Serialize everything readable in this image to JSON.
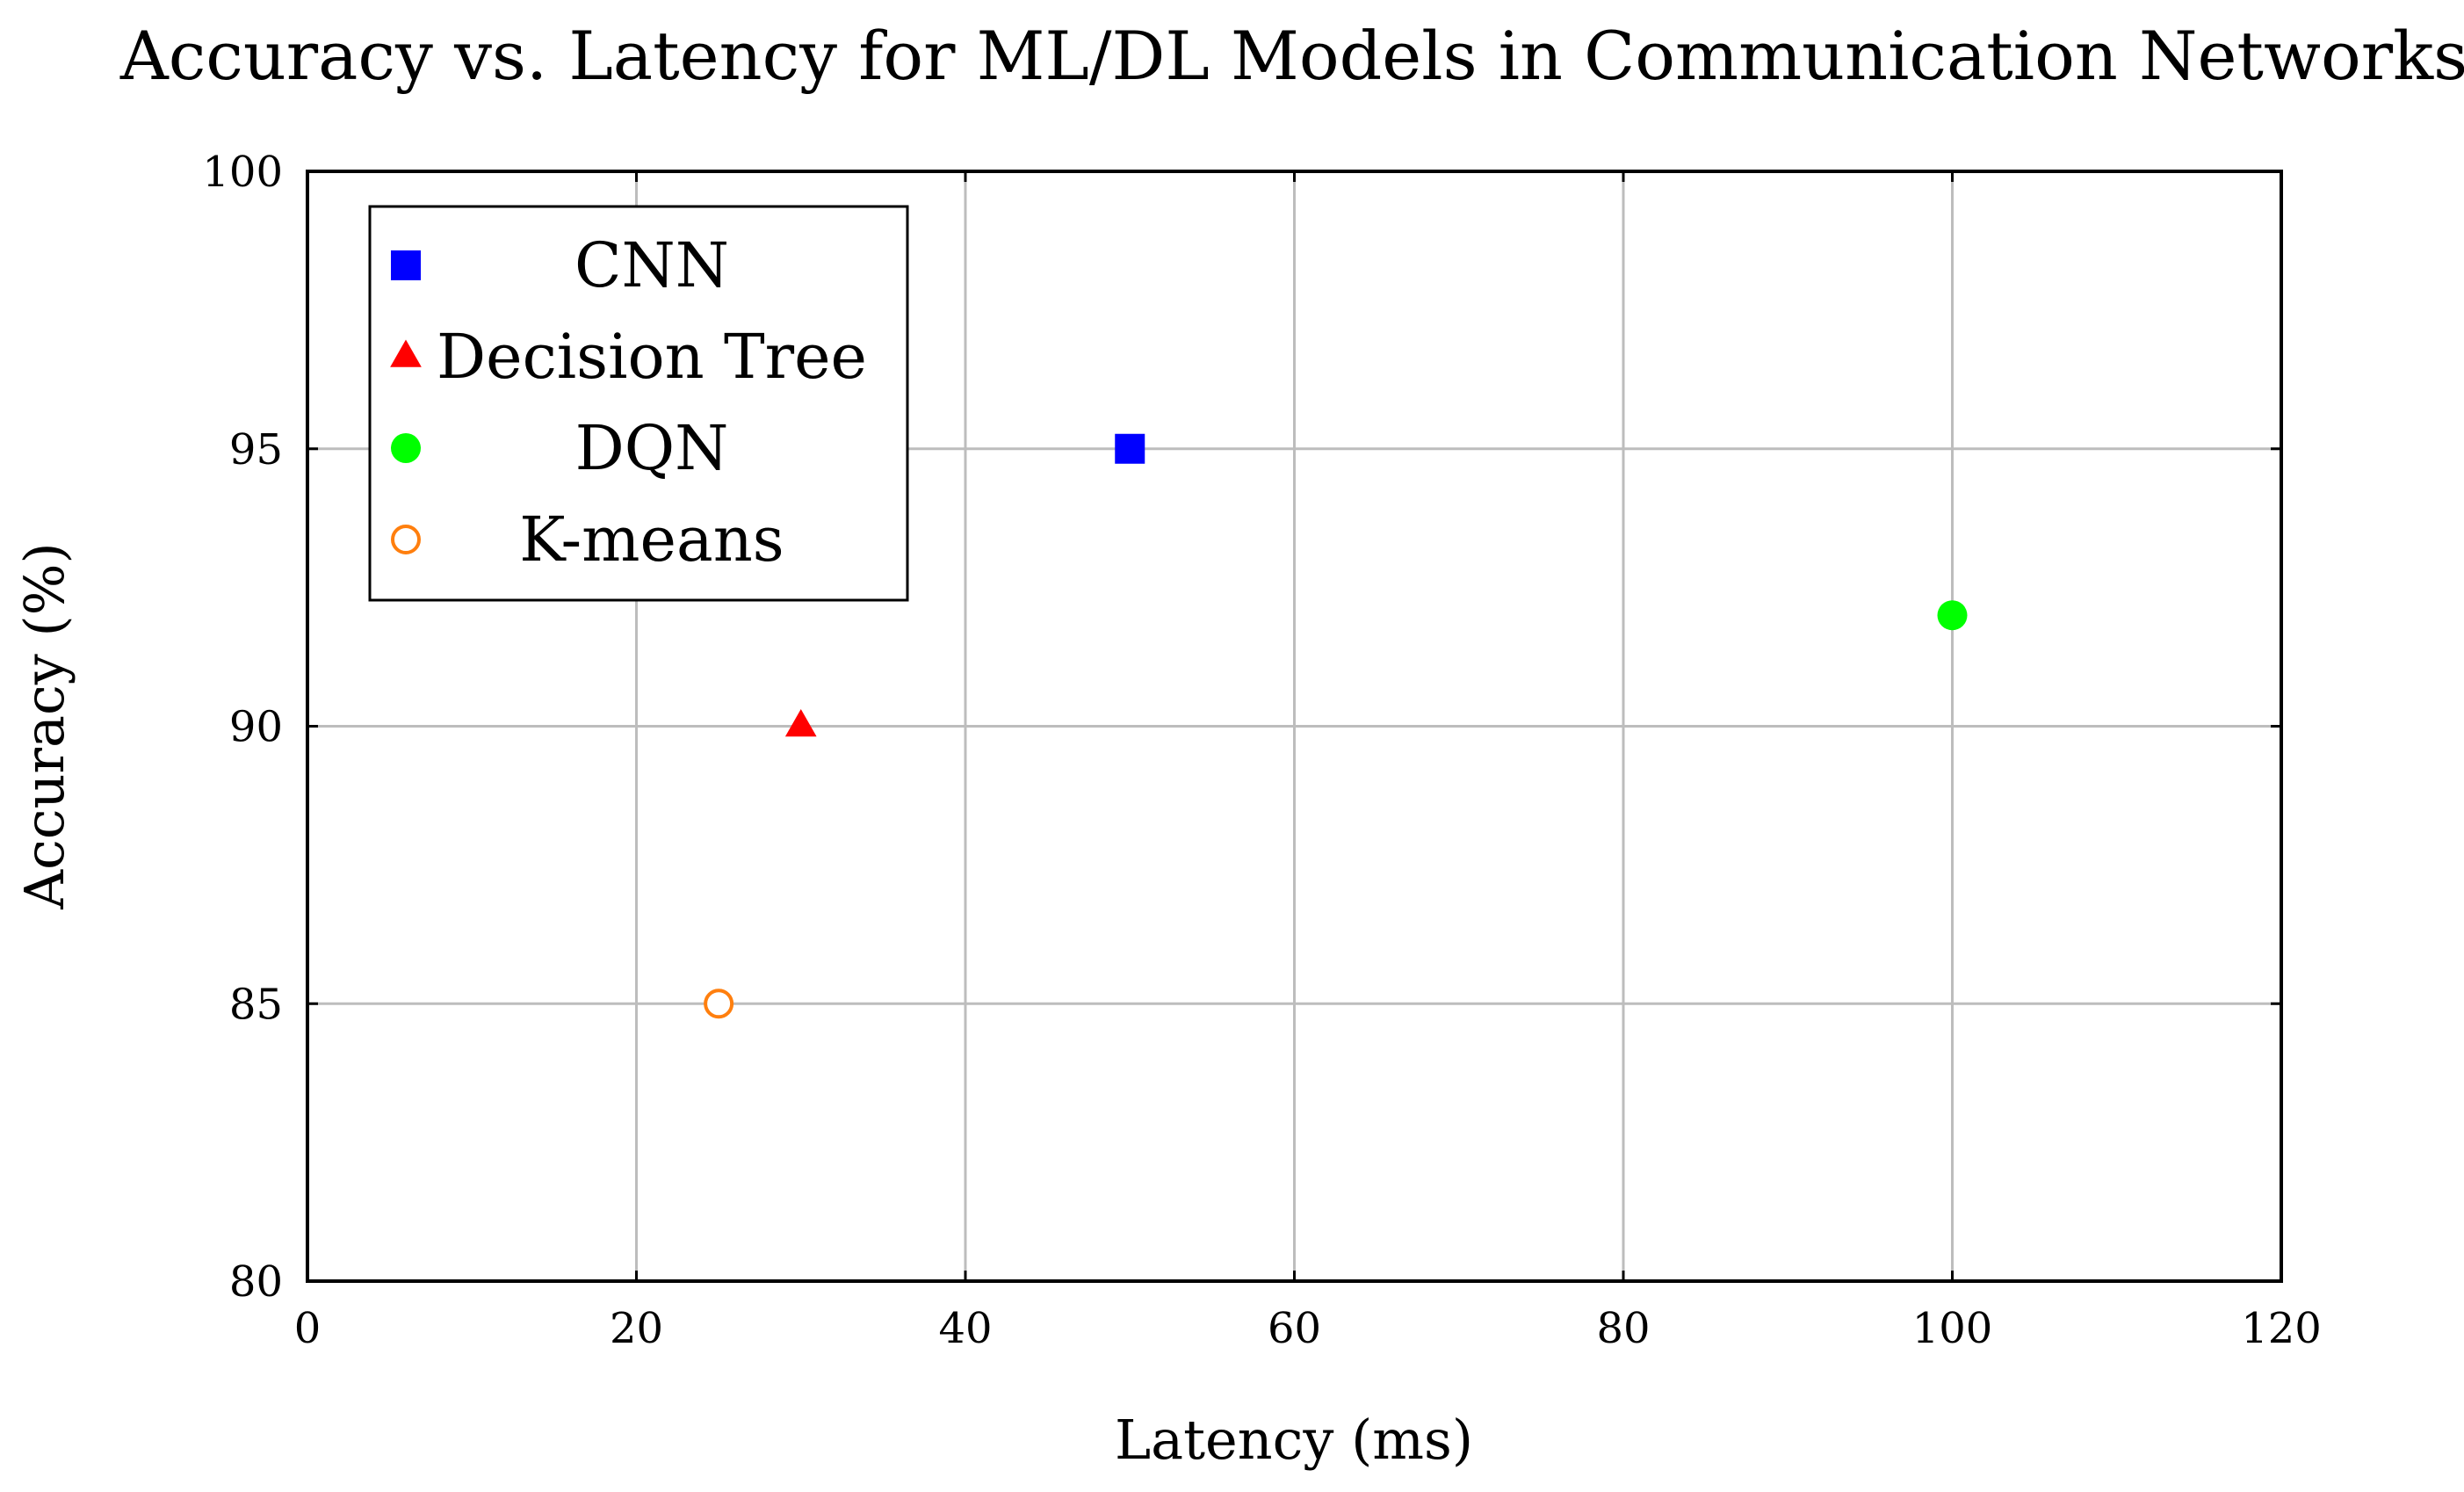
{
  "chart_data": {
    "type": "scatter",
    "title": "Accuracy vs. Latency for ML/DL Models in Communication Networks",
    "xlabel": "Latency (ms)",
    "ylabel": "Accuracy (%)",
    "xlim": [
      0,
      120
    ],
    "ylim": [
      80,
      100
    ],
    "xticks": [
      0,
      20,
      40,
      60,
      80,
      100,
      120
    ],
    "yticks": [
      80,
      85,
      90,
      95,
      100
    ],
    "grid": true,
    "legend_position": "top-left",
    "series": [
      {
        "name": "CNN",
        "marker": "square",
        "filled": true,
        "color": "#0000ff",
        "points": [
          {
            "x": 50,
            "y": 95
          }
        ]
      },
      {
        "name": "Decision Tree",
        "marker": "triangle",
        "filled": true,
        "color": "#ff0000",
        "points": [
          {
            "x": 30,
            "y": 90
          }
        ]
      },
      {
        "name": "DQN",
        "marker": "circle",
        "filled": true,
        "color": "#00ff00",
        "points": [
          {
            "x": 100,
            "y": 92
          }
        ]
      },
      {
        "name": "K-means",
        "marker": "circle",
        "filled": false,
        "color": "#ff7f0e",
        "points": [
          {
            "x": 25,
            "y": 85
          }
        ]
      }
    ]
  }
}
